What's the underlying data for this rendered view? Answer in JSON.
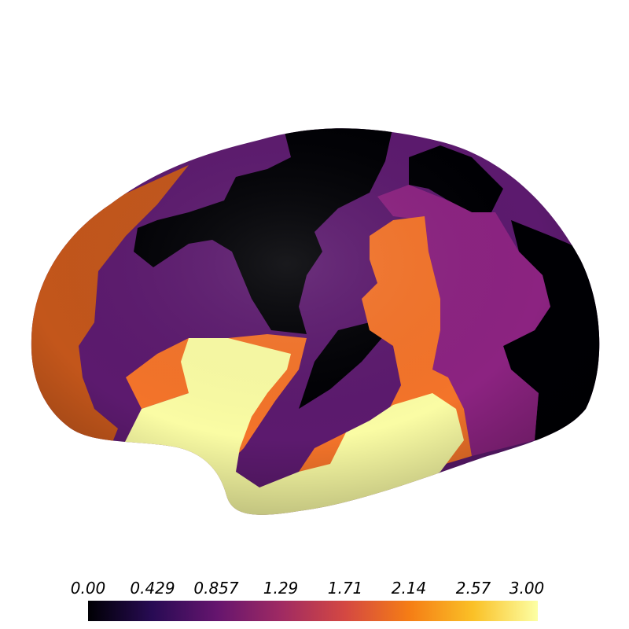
{
  "brain_map": {
    "view": "lateral cortical surface",
    "parcel_colors": {
      "black": "#000004",
      "dark_purple": "#5c1a6e",
      "magenta_purple": "#8c2381",
      "dark_orange": "#c3561b",
      "orange": "#f4742a",
      "pale_yellow": "#fafca4"
    }
  },
  "colorbar": {
    "colormap": "inferno",
    "min": 0.0,
    "max": 3.0,
    "ticks": [
      "0.00",
      "0.429",
      "0.857",
      "1.29",
      "1.71",
      "2.14",
      "2.57",
      "3.00"
    ],
    "gradient_stops": [
      "#000004",
      "#280b54",
      "#65156e",
      "#9f2a63",
      "#d44842",
      "#f57d15",
      "#fac127",
      "#fcffa4"
    ]
  }
}
